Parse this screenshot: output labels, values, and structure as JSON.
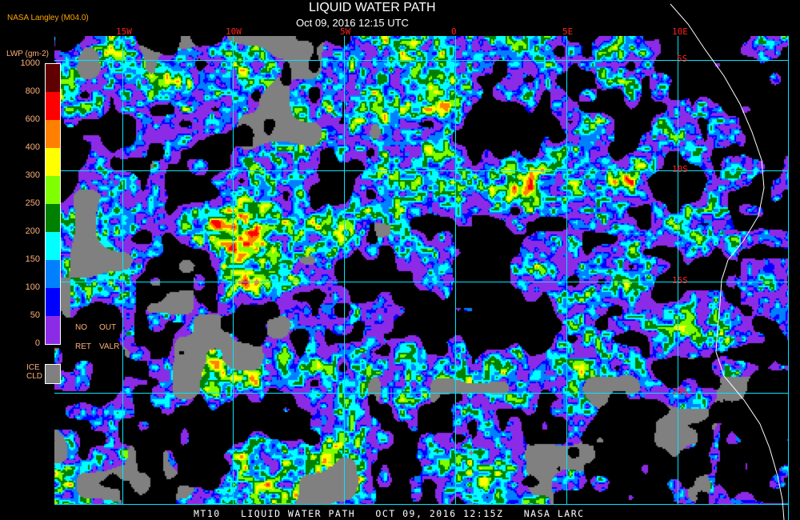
{
  "header": {
    "title": "LIQUID WATER PATH",
    "subtitle": "Oct 09, 2016 12:15 UTC",
    "brand": "NASA Langley (M04.0)"
  },
  "map": {
    "longitude_labels": [
      "15W",
      "10W",
      "5W",
      "0",
      "5E",
      "10E"
    ],
    "latitude_labels": [
      "5S",
      "10S",
      "15S",
      "20S"
    ],
    "grid_color": "#00e5ff",
    "label_color": "#ff2020",
    "coastline_color": "#ffffff"
  },
  "legend": {
    "unit": "LWP (gm-2)",
    "ticks": [
      "1000",
      "800",
      "600",
      "400",
      "300",
      "250",
      "200",
      "150",
      "100",
      "50",
      "0"
    ],
    "colors": [
      "#600000",
      "#ff0000",
      "#ff8000",
      "#ffff00",
      "#80ff00",
      "#008000",
      "#00ffff",
      "#0080ff",
      "#0000ff",
      "#8c2be6"
    ],
    "no_ret": [
      "NO",
      "RET"
    ],
    "out_valr": [
      "OUT",
      "VALR"
    ],
    "ice_cld": [
      "ICE",
      "CLD"
    ],
    "ice_color": "#808080"
  },
  "footer": "MT10   LIQUID WATER PATH   OCT 09, 2016 12:15Z   NASA LARC"
}
